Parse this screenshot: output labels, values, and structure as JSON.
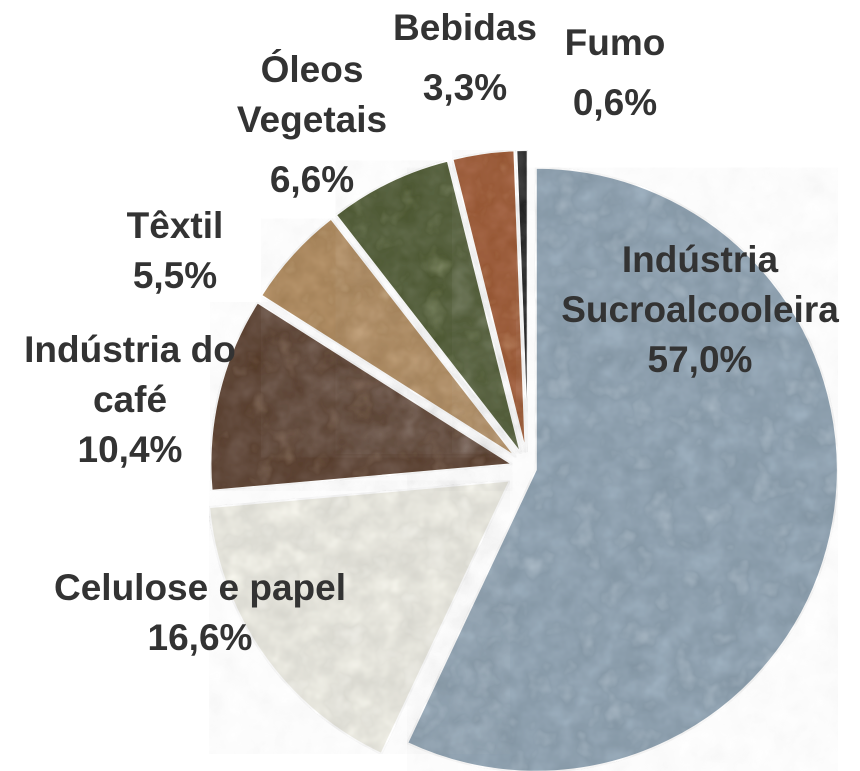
{
  "chart_data": {
    "type": "pie",
    "categories": [
      [
        "Indústria",
        "Sucroalcooleira"
      ],
      [
        "Celulose e papel"
      ],
      [
        "Indústria do",
        "café"
      ],
      [
        "Têxtil"
      ],
      [
        "Óleos",
        "Vegetais"
      ],
      [
        "Bebidas"
      ],
      [
        "Fumo"
      ]
    ],
    "values": [
      57.0,
      16.6,
      10.4,
      5.5,
      6.6,
      3.3,
      0.6
    ],
    "value_labels": [
      "57,0%",
      "16,6%",
      "10,4%",
      "5,5%",
      "6,6%",
      "3,3%",
      "0,6%"
    ],
    "colors": [
      "#8fa3b3",
      "#ecebe2",
      "#5a3a22",
      "#b08a5a",
      "#4d5a2a",
      "#a0582a",
      "#111111"
    ]
  }
}
